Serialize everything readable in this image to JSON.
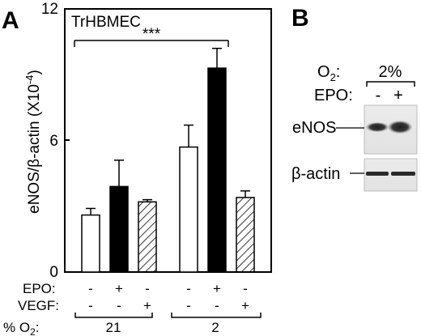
{
  "panels": {
    "a": "A",
    "b": "B"
  },
  "chart_data": {
    "type": "bar",
    "cell_line": "TrHBMEC",
    "ylabel": "eNOS/β-actin (X10",
    "ylabel_exp": "-4",
    "ylabel_close": ")",
    "ylim": [
      0,
      12
    ],
    "yticks": [
      "0",
      "6",
      "12"
    ],
    "significance": "***",
    "bars": [
      {
        "group": "21",
        "epo": "-",
        "vegf": "-",
        "value": 2.6,
        "error": 0.3,
        "fill": "white"
      },
      {
        "group": "21",
        "epo": "+",
        "vegf": "-",
        "value": 3.9,
        "error": 1.2,
        "fill": "black"
      },
      {
        "group": "21",
        "epo": "-",
        "vegf": "+",
        "value": 3.2,
        "error": 0.1,
        "fill": "hatched"
      },
      {
        "group": "2",
        "epo": "-",
        "vegf": "-",
        "value": 5.7,
        "error": 1.0,
        "fill": "white"
      },
      {
        "group": "2",
        "epo": "+",
        "vegf": "-",
        "value": 9.3,
        "error": 0.9,
        "fill": "black"
      },
      {
        "group": "2",
        "epo": "-",
        "vegf": "+",
        "value": 3.4,
        "error": 0.3,
        "fill": "hatched"
      }
    ],
    "row_labels": {
      "epo": "EPO:",
      "vegf": "VEGF:",
      "o2": "% O"
    },
    "o2_sub": "2",
    "o2_colon": ":",
    "groups": [
      "21",
      "2"
    ]
  },
  "blot": {
    "o2_label": "O",
    "o2_sub": "2",
    "o2_colon": ":",
    "o2_value": "2%",
    "epo_label": "EPO:",
    "epo_minus": "-",
    "epo_plus": "+",
    "enos_label": "eNOS",
    "actin_label": "β-actin"
  }
}
